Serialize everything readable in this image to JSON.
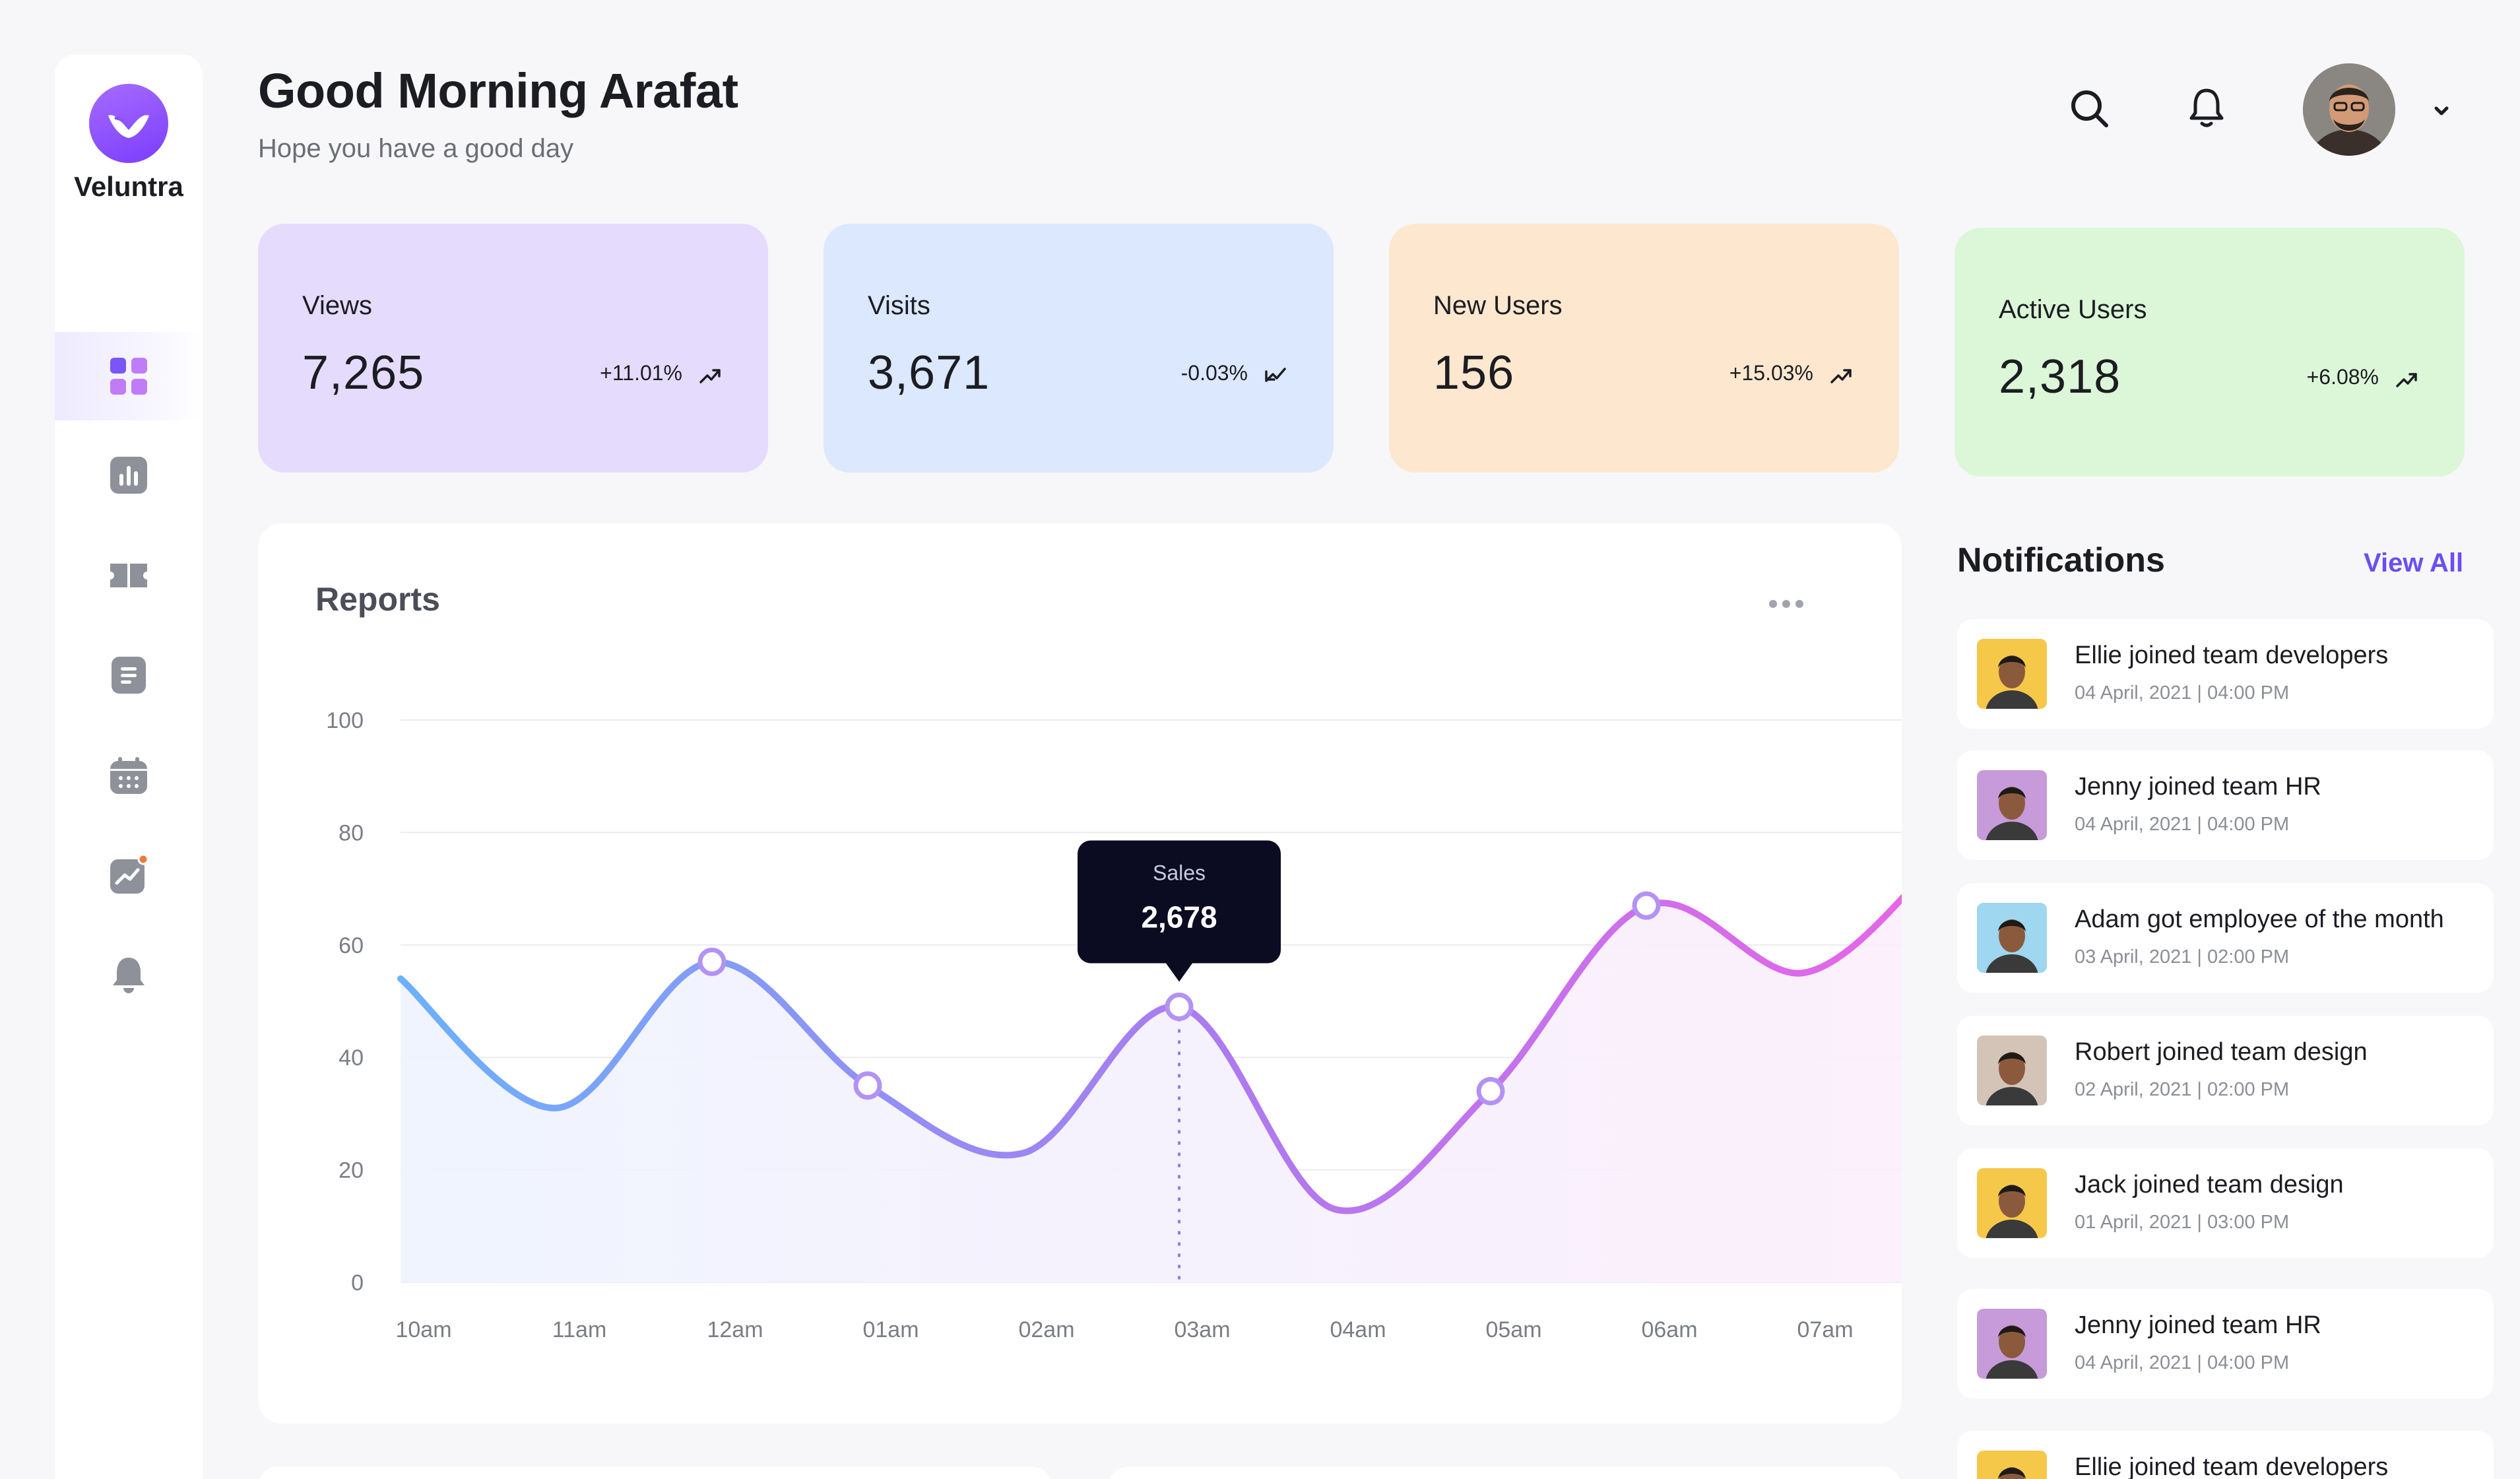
{
  "brand": {
    "name": "Veluntra"
  },
  "header": {
    "greeting": "Good Morning Arafat",
    "subtitle": "Hope you have a good day"
  },
  "sidebar": {
    "items": [
      {
        "icon": "dashboard-grid-icon",
        "active": true
      },
      {
        "icon": "bar-chart-icon",
        "active": false
      },
      {
        "icon": "ticket-icon",
        "active": false
      },
      {
        "icon": "document-icon",
        "active": false
      },
      {
        "icon": "calendar-icon",
        "active": false
      },
      {
        "icon": "analytics-icon",
        "active": false,
        "badge": true
      },
      {
        "icon": "bell-icon",
        "active": false
      }
    ]
  },
  "stats": [
    {
      "label": "Views",
      "value": "7,265",
      "change": "+11.01%",
      "trend": "up",
      "color": "#e5dcfd"
    },
    {
      "label": "Visits",
      "value": "3,671",
      "change": "-0.03%",
      "trend": "down",
      "color": "#dbe8fe"
    },
    {
      "label": "New Users",
      "value": "156",
      "change": "+15.03%",
      "trend": "up",
      "color": "#fde8cf"
    },
    {
      "label": "Active Users",
      "value": "2,318",
      "change": "+6.08%",
      "trend": "up",
      "color": "#dcf7d8"
    }
  ],
  "reports": {
    "title": "Reports",
    "tooltip": {
      "label": "Sales",
      "value": "2,678"
    }
  },
  "chart_data": {
    "type": "line",
    "title": "Reports",
    "x": [
      "10am",
      "11am",
      "12am",
      "01am",
      "02am",
      "03am",
      "04am",
      "05am",
      "06am",
      "07am"
    ],
    "yticks": [
      0,
      20,
      40,
      60,
      80,
      100
    ],
    "ylim": [
      0,
      100
    ],
    "grid": true,
    "series": [
      {
        "points": [
          [
            "10am",
            54
          ],
          [
            "11am",
            31
          ],
          [
            "12am",
            57
          ],
          [
            "01am",
            35
          ],
          [
            "02am",
            23
          ],
          [
            "03am",
            49
          ],
          [
            "04am",
            13
          ],
          [
            "05am",
            34
          ],
          [
            "06am",
            67
          ],
          [
            "07am",
            55
          ],
          [
            "07am+",
            73
          ]
        ],
        "markers": [
          "12am",
          "01am",
          "03am",
          "05am",
          "06am"
        ],
        "highlight": "03am"
      }
    ],
    "colors": {
      "start": "#6cb1fb",
      "mid": "#a77df0",
      "end": "#e865e8"
    }
  },
  "notifications": {
    "title": "Notifications",
    "view_all": "View All",
    "items": [
      {
        "text": "Ellie joined team developers",
        "time": "04 April, 2021 | 04:00 PM",
        "bg": "#f6c84a"
      },
      {
        "text": "Jenny joined team HR",
        "time": "04 April, 2021 | 04:00 PM",
        "bg": "#c79ad9"
      },
      {
        "text": "Adam got employee of the month",
        "time": "03 April, 2021 | 02:00 PM",
        "bg": "#9fd6f0"
      },
      {
        "text": "Robert joined team design",
        "time": "02 April, 2021 | 02:00 PM",
        "bg": "#d4c4b8"
      },
      {
        "text": "Jack joined team design",
        "time": "01 April, 2021 | 03:00 PM",
        "bg": "#f6c84a"
      },
      {
        "text": "Jenny joined team HR",
        "time": "04 April, 2021 | 04:00 PM",
        "bg": "#c79ad9"
      },
      {
        "text": "Ellie joined team developers",
        "time": "",
        "bg": "#f6c84a"
      }
    ]
  }
}
